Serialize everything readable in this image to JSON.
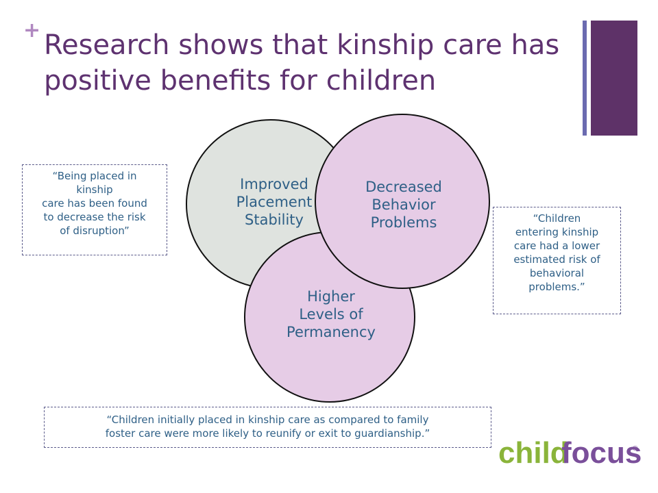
{
  "slide": {
    "bullet": "+",
    "title": "Research shows that kinship care has positive benefits for children"
  },
  "circles": {
    "stability": "Improved\nPlacement\nStability",
    "behavior": "Decreased\nBehavior\nProblems",
    "permanency": "Higher\nLevels of\nPermanency"
  },
  "quotes": {
    "left": "“Being placed in\nkinship\ncare has been found\nto decrease the  risk\nof disruption”",
    "right": "“Children\nentering kinship\ncare had a lower\nestimated risk of\nbehavioral\nproblems.”",
    "bottom": "“Children initially placed in kinship care as compared to family\nfoster care were more likely to reunify or exit to guardianship.”"
  },
  "logo": {
    "part1": "child",
    "part2": "focus",
    "mark": "®"
  },
  "colors": {
    "title": "#5e3270",
    "accent_bar": "#5e3268",
    "accent_bar_thin": "#6b6bb0",
    "circle_gray": "#dfe3df",
    "circle_pink": "#e6cce6",
    "text_blue": "#2e5f86",
    "logo_green": "#8ab43a",
    "logo_purple": "#7a4f9a"
  }
}
